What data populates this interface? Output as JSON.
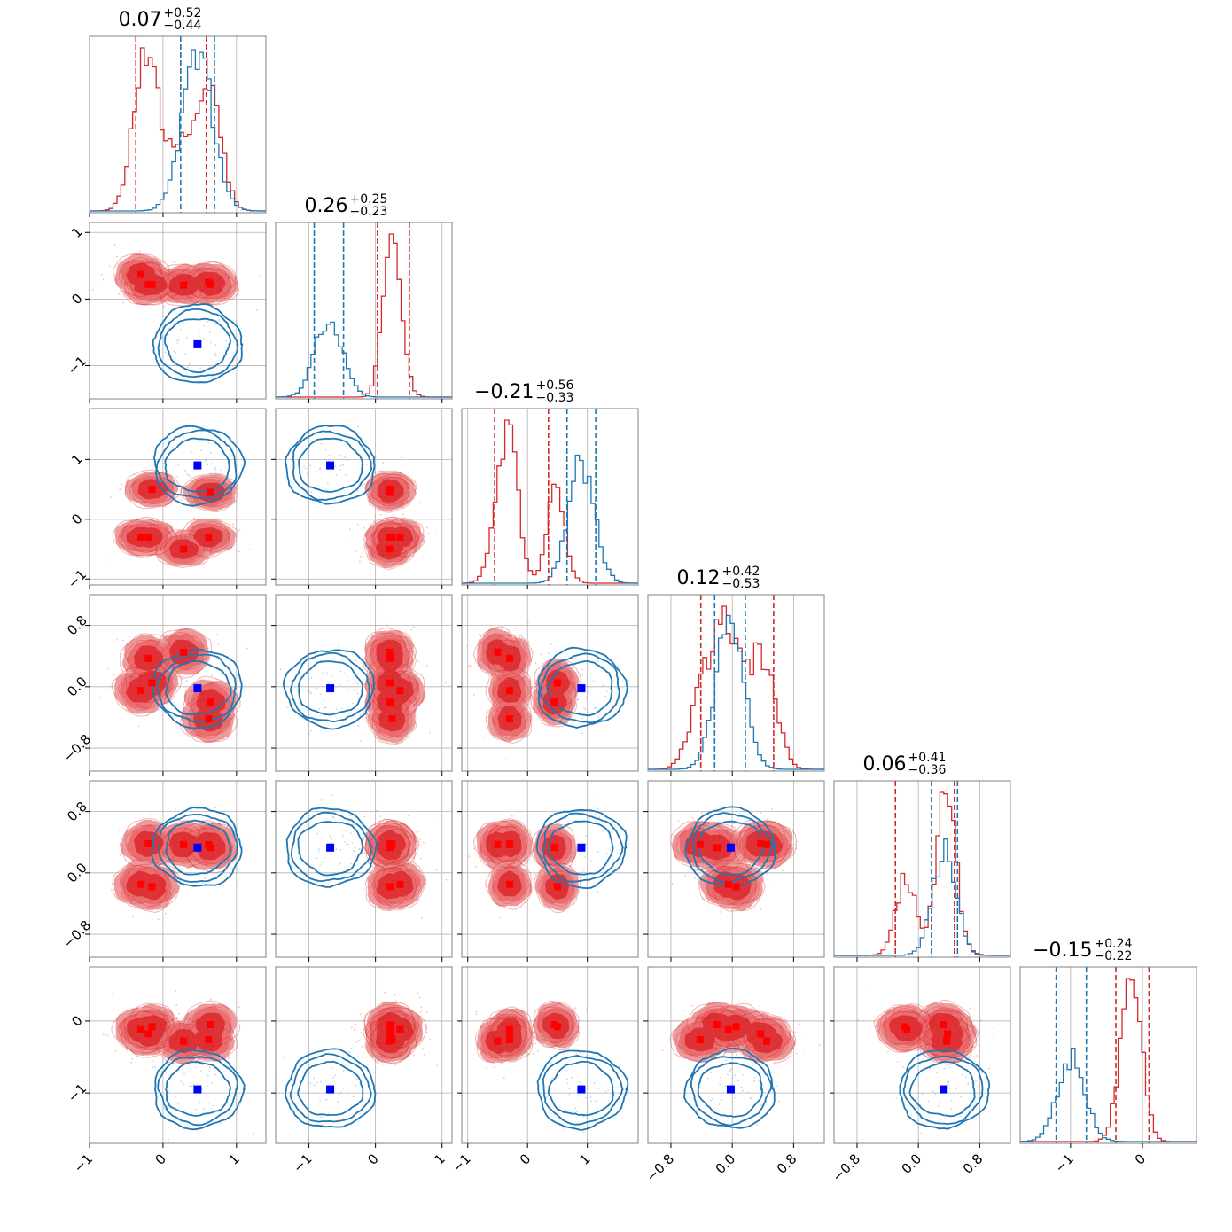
{
  "chart_data": {
    "type": "corner",
    "parameters": 6,
    "colors": {
      "red": "#d62728",
      "blue": "#1f77b4",
      "red_fill_light": "#ee9a9b",
      "red_fill_dark": "#df3236"
    },
    "grid": true,
    "titles": [
      {
        "main": "0.07",
        "plus": "+0.52",
        "minus": "−0.44"
      },
      {
        "main": "0.26",
        "plus": "+0.25",
        "minus": "−0.23"
      },
      {
        "main": "−0.21",
        "plus": "+0.56",
        "minus": "−0.33"
      },
      {
        "main": "0.12",
        "plus": "+0.42",
        "minus": "−0.53"
      },
      {
        "main": "0.06",
        "plus": "+0.41",
        "minus": "−0.36"
      },
      {
        "main": "−0.15",
        "plus": "+0.24",
        "minus": "−0.22"
      }
    ],
    "axis_ranges": [
      [
        -1.0,
        1.4
      ],
      [
        -1.5,
        1.15
      ],
      [
        -1.1,
        1.85
      ],
      [
        -1.1,
        1.2
      ],
      [
        -1.1,
        1.2
      ],
      [
        -1.7,
        0.75
      ]
    ],
    "ticks": [
      {
        "values": [
          -1,
          0,
          1
        ],
        "labels": [
          "−1",
          "0",
          "1"
        ]
      },
      {
        "values": [
          -1,
          0,
          1
        ],
        "labels": [
          "−1",
          "0",
          "1"
        ]
      },
      {
        "values": [
          -1,
          0,
          1
        ],
        "labels": [
          "−1",
          "0",
          "1"
        ]
      },
      {
        "values": [
          -0.8,
          0.0,
          0.8
        ],
        "labels": [
          "−0.8",
          "0.0",
          "0.8"
        ]
      },
      {
        "values": [
          -0.8,
          0.0,
          0.8
        ],
        "labels": [
          "−0.8",
          "0.0",
          "0.8"
        ]
      },
      {
        "values": [
          -1,
          0
        ],
        "labels": [
          "−1",
          "0"
        ]
      }
    ],
    "red_modes": [
      [
        0.65,
        0.22,
        0.45,
        -0.2,
        0.33,
        -0.05
      ],
      [
        -0.2,
        0.22,
        -0.3,
        0.37,
        0.38,
        -0.18
      ],
      [
        0.28,
        0.21,
        -0.5,
        0.45,
        0.37,
        -0.28
      ],
      [
        0.62,
        0.25,
        -0.3,
        -0.42,
        0.37,
        -0.26
      ],
      [
        -0.15,
        0.22,
        0.5,
        0.05,
        -0.18,
        -0.08
      ],
      [
        -0.3,
        0.37,
        -0.3,
        -0.05,
        -0.15,
        -0.12
      ]
    ],
    "blue_point": [
      0.47,
      -0.68,
      0.9,
      -0.02,
      0.33,
      -0.95
    ],
    "red_quantiles": [
      [
        -0.37,
        0.59
      ],
      [
        0.03,
        0.51
      ],
      [
        -0.55,
        0.35
      ],
      [
        -0.41,
        0.54
      ],
      [
        -0.3,
        0.47
      ],
      [
        -0.37,
        0.09
      ]
    ],
    "blue_quantiles": [
      [
        0.24,
        0.7
      ],
      [
        -0.92,
        -0.48
      ],
      [
        0.66,
        1.14
      ],
      [
        -0.23,
        0.17
      ],
      [
        0.17,
        0.51
      ],
      [
        -1.2,
        -0.78
      ]
    ]
  }
}
